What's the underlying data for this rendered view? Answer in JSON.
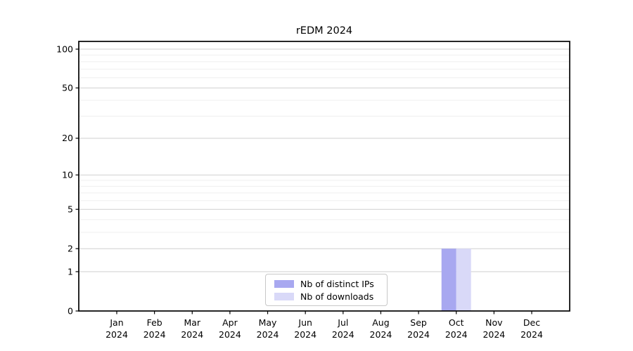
{
  "chart_data": {
    "type": "bar",
    "title": "rEDM 2024",
    "categories": [
      "Jan",
      "Feb",
      "Mar",
      "Apr",
      "May",
      "Jun",
      "Jul",
      "Aug",
      "Sep",
      "Oct",
      "Nov",
      "Dec"
    ],
    "category_year": "2024",
    "series": [
      {
        "name": "Nb of distinct IPs",
        "color": "#a8a8f0",
        "values": [
          0,
          0,
          0,
          0,
          0,
          0,
          0,
          0,
          0,
          2,
          0,
          0
        ]
      },
      {
        "name": "Nb of downloads",
        "color": "#d9d9f8",
        "values": [
          0,
          0,
          0,
          0,
          0,
          0,
          0,
          0,
          0,
          2,
          0,
          0
        ]
      }
    ],
    "yscale": "log1p",
    "yticks_major": [
      0,
      1,
      2,
      5,
      10,
      20,
      50,
      100
    ],
    "yticks_minor": [
      3,
      4,
      6,
      7,
      8,
      9,
      30,
      40,
      60,
      70,
      80,
      90
    ],
    "ylim": [
      0,
      115
    ],
    "xlabel": "",
    "ylabel": "",
    "grid": "horizontal",
    "legend_position": "bottom-center-inside",
    "colors": {
      "major_grid": "#cfcfcf",
      "minor_grid": "#efefef",
      "frame": "#000000",
      "tick_label": "#000000",
      "background": "#ffffff"
    }
  }
}
